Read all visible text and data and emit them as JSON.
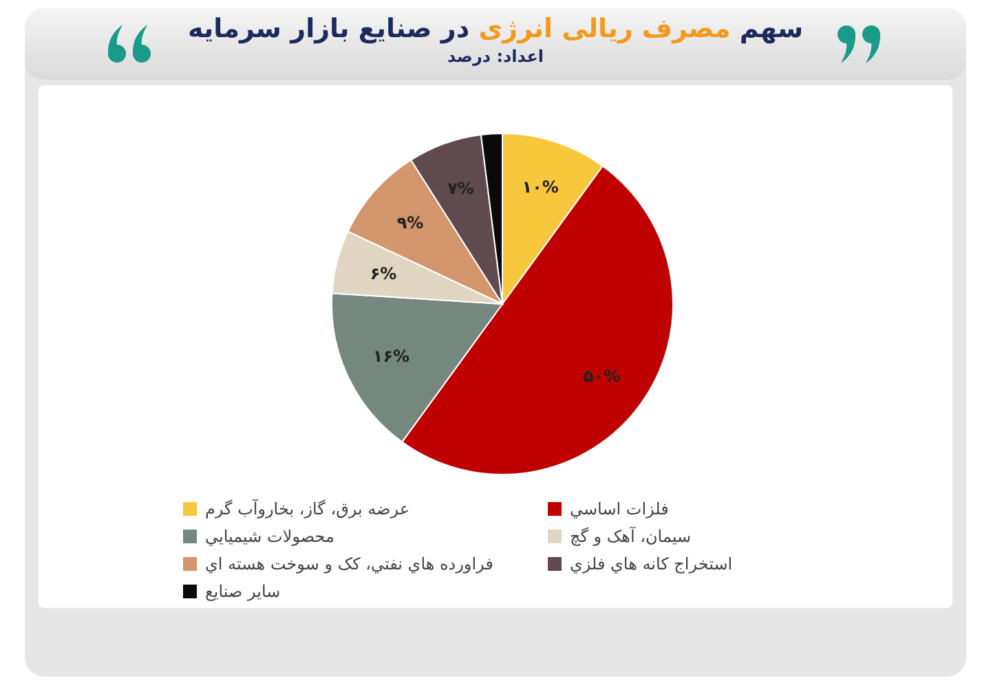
{
  "chart_data": {
    "type": "pie",
    "title": "سهم مصرف ریالی انرژی در صنایع بازار سرمایه",
    "subtitle": "اعداد: درصد",
    "categories": [
      "عرضه برق، گاز، بخاروآب گرم",
      "فلزات اساسي",
      "محصولات شيميايي",
      "سيمان، آهک و گچ",
      "فراورده هاي نفتي، کک و سوخت هسته اي",
      "استخراج کانه هاي فلزي",
      "ساير صنايع"
    ],
    "values": [
      10,
      50,
      16,
      6,
      9,
      7,
      2
    ],
    "colors": [
      "#f7c83c",
      "#c00000",
      "#74887f",
      "#e0d5c1",
      "#d3956b",
      "#5f4a50",
      "#0a0a0a"
    ],
    "value_labels": [
      "۱۰%",
      "۵۰%",
      "۱۶%",
      "۶%",
      "۹%",
      "۷%",
      null
    ],
    "legend": "bottom"
  }
}
